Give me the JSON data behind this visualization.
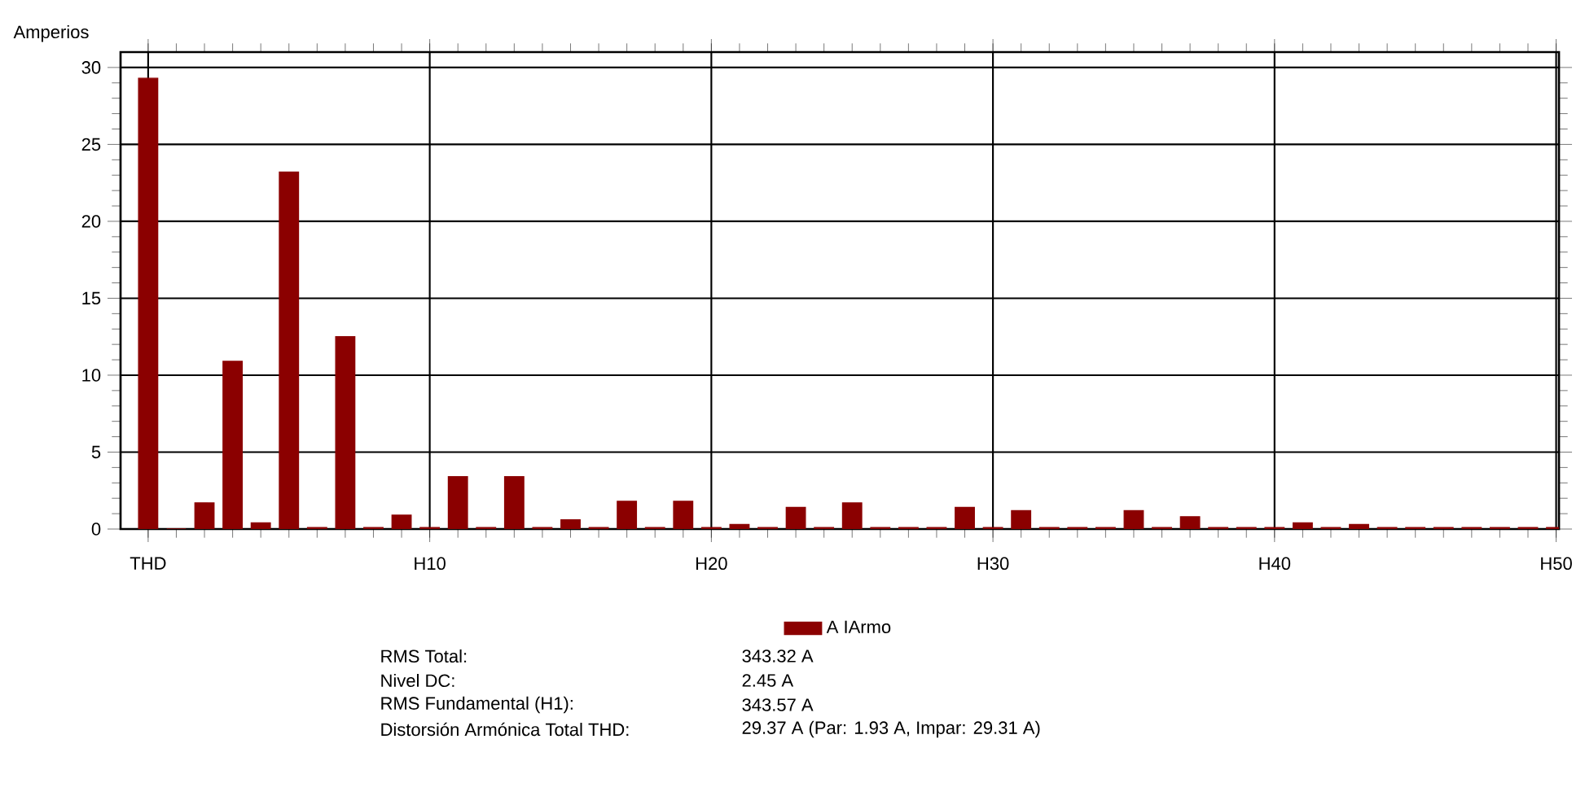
{
  "chart_data": {
    "type": "bar",
    "ylabel": "Amperios",
    "categories": [
      "THD",
      null,
      null,
      null,
      null,
      null,
      null,
      null,
      null,
      null,
      "H10",
      null,
      null,
      null,
      null,
      null,
      null,
      null,
      null,
      null,
      "H20",
      null,
      null,
      null,
      null,
      null,
      null,
      null,
      null,
      null,
      "H30",
      null,
      null,
      null,
      null,
      null,
      null,
      null,
      null,
      null,
      "H40",
      null,
      null,
      null,
      null,
      null,
      null,
      null,
      null,
      null,
      "H50"
    ],
    "series": [
      {
        "name": "A IArmo",
        "color": "#8b0000",
        "values": [
          29.3,
          0,
          1.7,
          10.9,
          0.4,
          23.2,
          0.1,
          12.5,
          0.1,
          0.9,
          0.1,
          3.4,
          0.1,
          3.4,
          0.1,
          0.6,
          0.1,
          1.8,
          0.1,
          1.8,
          0.1,
          0.3,
          0.1,
          1.4,
          0.1,
          1.7,
          0.1,
          0.1,
          0.1,
          1.4,
          0.1,
          1.2,
          0.1,
          0.1,
          0.1,
          1.2,
          0.1,
          0.8,
          0.1,
          0.1,
          0.1,
          0.4,
          0.1,
          0.3,
          0.1,
          0.1,
          0.1,
          0.1,
          0.1,
          0.1,
          0.1
        ]
      }
    ],
    "ylim": [
      0,
      31
    ],
    "yticks": [
      0,
      5,
      10,
      15,
      20,
      25,
      30
    ],
    "grid": true,
    "legend": "bottom",
    "annotations": [
      "RMS Total:",
      "343.32 A",
      "Nivel DC:",
      "2.45 A",
      "RMS Fundamental (H1):",
      "343.57 A",
      "Distorsión Armónica Total THD:",
      "29.37 A (Par: 1.93 A, Impar: 29.31 A)"
    ]
  }
}
